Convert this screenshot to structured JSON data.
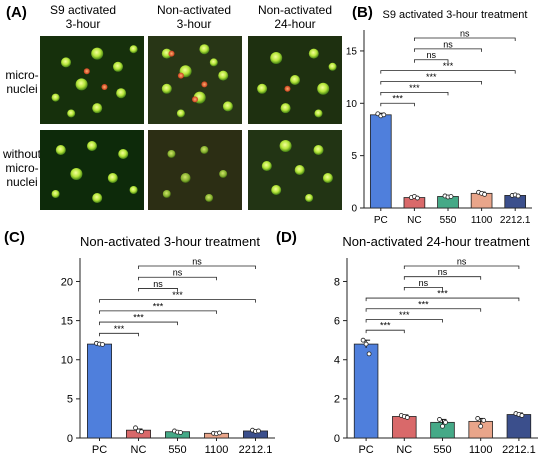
{
  "figure": {
    "panel_a": {
      "letter": "(A)",
      "columns": [
        "S9 activated\n3-hour",
        "Non-activated\n3-hour",
        "Non-activated\n24-hour"
      ],
      "rows": [
        "micro-\nnuclei",
        "without\nmicro-\nnuclei"
      ]
    }
  },
  "colors": {
    "PC": "#4f7fdc",
    "NC": "#d9696a",
    "550": "#45a987",
    "1100": "#e9a58a",
    "2212.1": "#3b4f8c"
  },
  "chart_data": [
    {
      "letter": "(B)",
      "type": "bar",
      "title": "S9 activated 3-hour treatment",
      "xlabel": "",
      "ylabel": "",
      "categories": [
        "PC",
        "NC",
        "550",
        "1100",
        "2212.1"
      ],
      "values": [
        8.9,
        1.0,
        1.1,
        1.4,
        1.2
      ],
      "errors": [
        0.15,
        0.08,
        0.1,
        0.12,
        0.08
      ],
      "points": [
        [
          9.0,
          8.8,
          8.9
        ],
        [
          1.0,
          1.1,
          0.95
        ],
        [
          1.15,
          1.05,
          1.1
        ],
        [
          1.5,
          1.4,
          1.3
        ],
        [
          1.2,
          1.25,
          1.15
        ]
      ],
      "ylim": [
        0,
        17
      ],
      "yticks": [
        0,
        5,
        10,
        15
      ],
      "comparisons": [
        {
          "from": "NC",
          "to": "2212.1",
          "label": "ns"
        },
        {
          "from": "NC",
          "to": "1100",
          "label": "ns"
        },
        {
          "from": "NC",
          "to": "550",
          "label": "ns"
        },
        {
          "from": "PC",
          "to": "2212.1",
          "label": "***"
        },
        {
          "from": "PC",
          "to": "1100",
          "label": "***"
        },
        {
          "from": "PC",
          "to": "550",
          "label": "***"
        },
        {
          "from": "PC",
          "to": "NC",
          "label": "***"
        }
      ]
    },
    {
      "letter": "(C)",
      "type": "bar",
      "title": "Non-activated 3-hour treatment",
      "xlabel": "",
      "ylabel": "",
      "categories": [
        "PC",
        "NC",
        "550",
        "1100",
        "2212.1"
      ],
      "values": [
        12.0,
        1.0,
        0.8,
        0.6,
        0.9
      ],
      "errors": [
        0.1,
        0.15,
        0.1,
        0.05,
        0.1
      ],
      "points": [
        [
          12.1,
          12.0,
          11.95
        ],
        [
          1.3,
          0.9,
          0.8
        ],
        [
          0.9,
          0.75,
          0.7
        ],
        [
          0.6,
          0.55,
          0.65
        ],
        [
          1.0,
          0.85,
          0.9
        ]
      ],
      "ylim": [
        0,
        23
      ],
      "yticks": [
        0,
        5,
        10,
        15,
        20
      ],
      "comparisons": [
        {
          "from": "NC",
          "to": "2212.1",
          "label": "ns"
        },
        {
          "from": "NC",
          "to": "1100",
          "label": "ns"
        },
        {
          "from": "NC",
          "to": "550",
          "label": "ns"
        },
        {
          "from": "PC",
          "to": "2212.1",
          "label": "***"
        },
        {
          "from": "PC",
          "to": "1100",
          "label": "***"
        },
        {
          "from": "PC",
          "to": "550",
          "label": "***"
        },
        {
          "from": "PC",
          "to": "NC",
          "label": "***"
        }
      ]
    },
    {
      "letter": "(D)",
      "type": "bar",
      "title": "Non-activated 24-hour treatment",
      "xlabel": "",
      "ylabel": "",
      "categories": [
        "PC",
        "NC",
        "550",
        "1100",
        "2212.1"
      ],
      "values": [
        4.8,
        1.1,
        0.8,
        0.85,
        1.2
      ],
      "errors": [
        0.2,
        0.08,
        0.15,
        0.15,
        0.08
      ],
      "points": [
        [
          5.0,
          4.8,
          4.3
        ],
        [
          1.15,
          1.1,
          1.05
        ],
        [
          0.95,
          0.6,
          0.8
        ],
        [
          1.0,
          0.6,
          0.9
        ],
        [
          1.25,
          1.2,
          1.15
        ]
      ],
      "ylim": [
        0,
        9.2
      ],
      "yticks": [
        0,
        2,
        4,
        6,
        8
      ],
      "comparisons": [
        {
          "from": "NC",
          "to": "2212.1",
          "label": "ns"
        },
        {
          "from": "NC",
          "to": "1100",
          "label": "ns"
        },
        {
          "from": "NC",
          "to": "550",
          "label": "ns"
        },
        {
          "from": "PC",
          "to": "2212.1",
          "label": "***"
        },
        {
          "from": "PC",
          "to": "1100",
          "label": "***"
        },
        {
          "from": "PC",
          "to": "550",
          "label": "***"
        },
        {
          "from": "PC",
          "to": "NC",
          "label": "***"
        }
      ]
    }
  ]
}
